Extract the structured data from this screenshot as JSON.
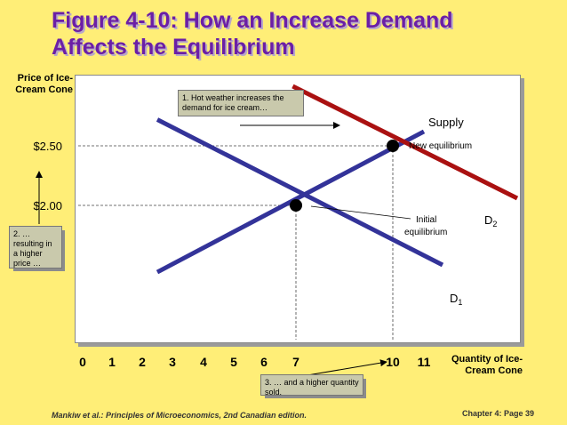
{
  "title_line1": "Figure 4-10: How an Increase Demand",
  "title_line2": "Affects the Equilibrium",
  "footer_left": "Mankiw et al.: Principles of Microeconomics, 2nd Canadian edition.",
  "footer_right": "Chapter 4: Page 39",
  "callouts": {
    "c1": "1. Hot weather increases the demand for ice cream…",
    "c2": "2. … resulting in a higher price …",
    "c3": "3. … and a higher quantity sold."
  },
  "labels": {
    "supply": "Supply",
    "new_equilibrium": "New equilibrium",
    "initial_equilibrium_1": "Initial",
    "initial_equilibrium_2": "equilibrium",
    "d1_letter": "D",
    "d1_sub": "1",
    "d2_letter": "D",
    "d2_sub": "2"
  },
  "chart_data": {
    "type": "line",
    "xlabel": "Quantity of Ice-Cream Cone",
    "ylabel": "Price of Ice-Cream Cone",
    "x_ticks": [
      "0",
      "1",
      "2",
      "3",
      "4",
      "5",
      "6",
      "7",
      "10",
      "11"
    ],
    "y_ticks": [
      "$2.50",
      "$2.00"
    ],
    "series": [
      {
        "name": "Supply",
        "color": "#333399",
        "points": [
          [
            2.5,
            1.44
          ],
          [
            11,
            2.62
          ]
        ]
      },
      {
        "name": "D1",
        "color": "#333399",
        "points": [
          [
            2.5,
            2.72
          ],
          [
            11.6,
            1.5
          ]
        ]
      },
      {
        "name": "D2",
        "color": "#aa1111",
        "points": [
          [
            6.9,
            3.0
          ],
          [
            14.0,
            2.06
          ]
        ]
      }
    ],
    "equilibria": [
      {
        "name": "Initial equilibrium",
        "x": 7,
        "y": 2.0
      },
      {
        "name": "New equilibrium",
        "x": 10,
        "y": 2.5
      }
    ],
    "xlim": [
      0,
      14
    ],
    "ylim": [
      1.4,
      3.0
    ],
    "grid": false
  },
  "colors": {
    "background": "#ffee77",
    "title": "#6b1fa6",
    "supply_demand": "#333399",
    "new_demand": "#aa1111"
  }
}
